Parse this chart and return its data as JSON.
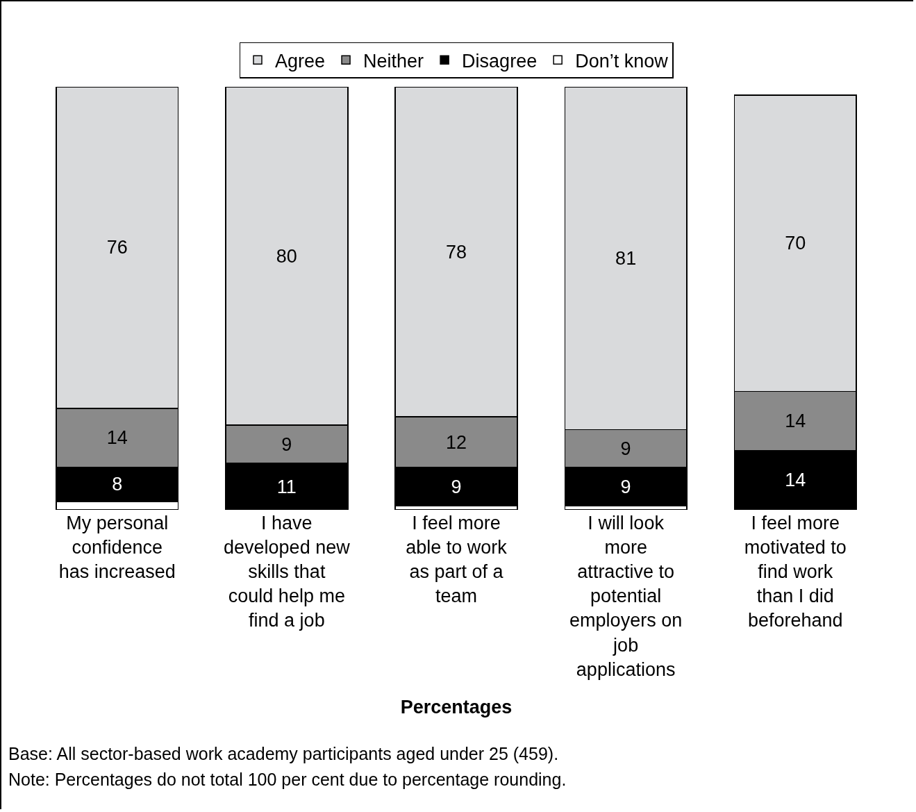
{
  "chart_data": {
    "type": "bar",
    "stacked": true,
    "xlabel": "Percentages",
    "legend": "top",
    "categories": [
      "My personal confidence has increased",
      "I have developed new skills that could help me find a job",
      "I feel more able to work as part of a team",
      "I will look more attractive to potential employers on job applications",
      "I feel more motivated to find work than I did beforehand"
    ],
    "series": [
      {
        "name": "Don’t know",
        "color": "#ffffff",
        "values": [
          2,
          null,
          1,
          1,
          null
        ],
        "value_labels": [
          null,
          null,
          null,
          null,
          null
        ]
      },
      {
        "name": "Disagree",
        "color": "#000000",
        "values": [
          8,
          11,
          9,
          9,
          14
        ],
        "value_labels": [
          "8",
          "11",
          "9",
          "9",
          "14"
        ]
      },
      {
        "name": "Neither",
        "color": "#8a8a8a",
        "values": [
          14,
          9,
          12,
          9,
          14
        ],
        "value_labels": [
          "14",
          "9",
          "12",
          "9",
          "14"
        ]
      },
      {
        "name": "Agree",
        "color": "#d9dadc",
        "values": [
          76,
          80,
          78,
          81,
          70
        ],
        "value_labels": [
          "76",
          "80",
          "78",
          "81",
          "70"
        ]
      }
    ],
    "ylim": [
      0,
      100
    ],
    "annotations": [
      "Base: All sector-based work academy participants aged under 25 (459).",
      "Note: Percentages do not total 100 per cent due to percentage rounding."
    ]
  }
}
